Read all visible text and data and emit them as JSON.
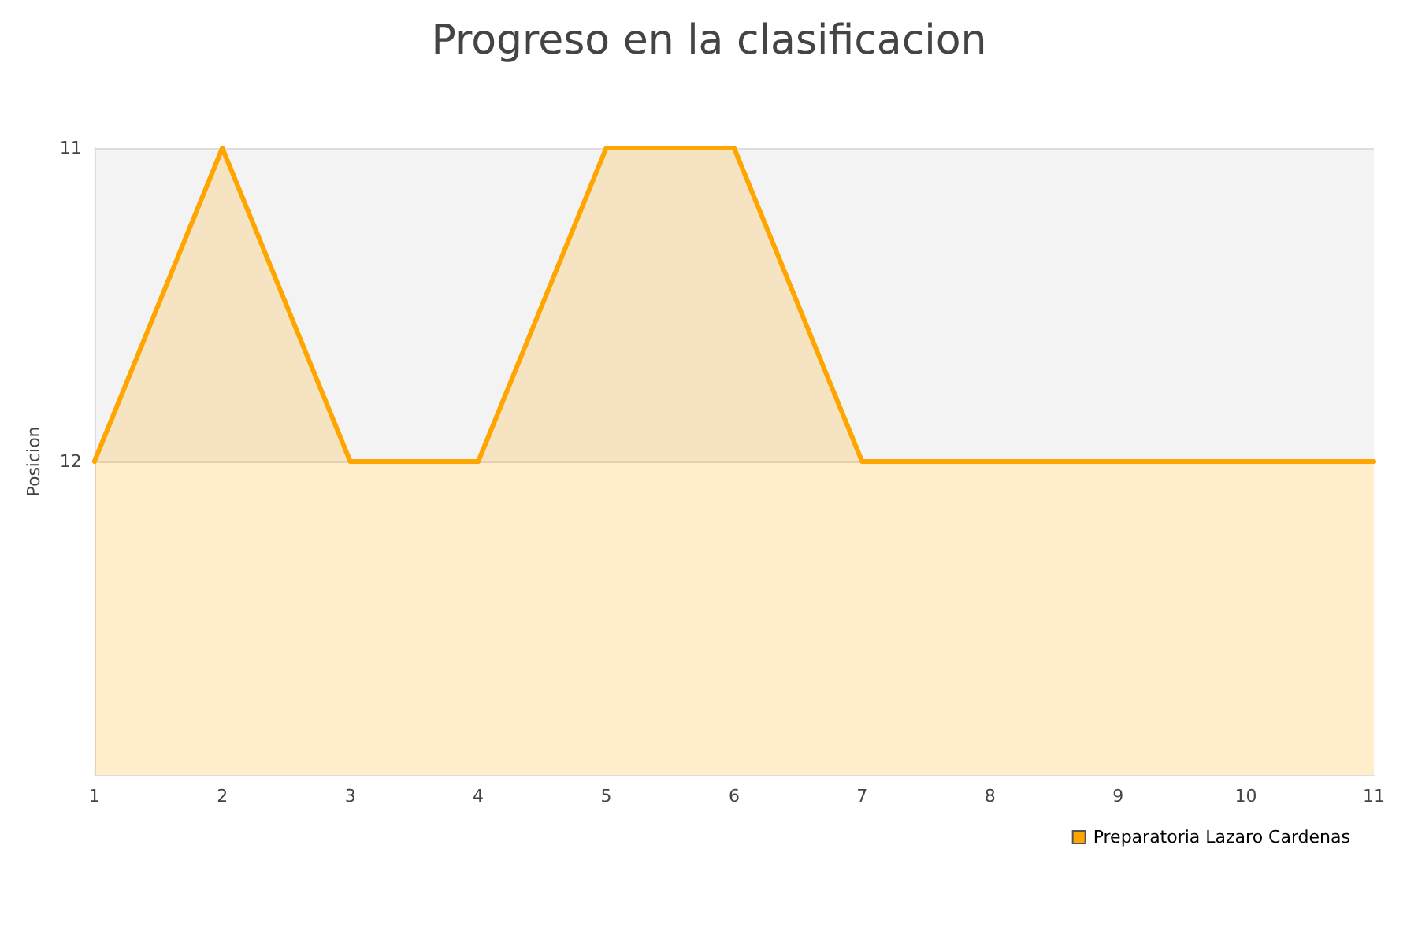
{
  "chart_data": {
    "type": "area",
    "title": "Progreso en la clasificacion",
    "ylabel": "Posicion",
    "x": [
      1,
      2,
      3,
      4,
      5,
      6,
      7,
      8,
      9,
      10,
      11
    ],
    "series": [
      {
        "name": "Preparatoria Lazaro Cardenas",
        "color": "#ffa500",
        "values": [
          12,
          11,
          12,
          12,
          11,
          11,
          12,
          12,
          12,
          12,
          12
        ],
        "lower": [
          13,
          13,
          13,
          13,
          13,
          13,
          13,
          13,
          13,
          13,
          13
        ],
        "upper": [
          12,
          11,
          12,
          12,
          11,
          11,
          12,
          12,
          12,
          12,
          12
        ]
      }
    ],
    "xlim": [
      1,
      11
    ],
    "xticks": [
      1,
      2,
      3,
      4,
      5,
      6,
      7,
      8,
      9,
      10,
      11
    ],
    "ylim": [
      13,
      11
    ],
    "yticks": [
      11,
      12
    ],
    "grid": "y",
    "legend": "bottom right",
    "marker": "none",
    "line_style": "solid"
  }
}
